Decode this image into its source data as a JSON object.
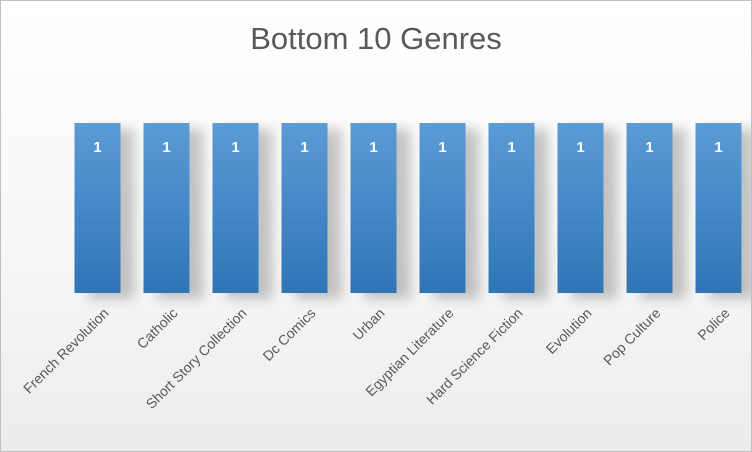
{
  "chart_data": {
    "type": "bar",
    "title": "Bottom 10 Genres",
    "categories": [
      "French Revolution",
      "Catholic",
      "Short Story Collection",
      "Dc Comics",
      "Urban",
      "Egyptian Literature",
      "Hard Science Fiction",
      "Evolution",
      "Pop Culture",
      "Police"
    ],
    "values": [
      1,
      1,
      1,
      1,
      1,
      1,
      1,
      1,
      1,
      1
    ],
    "data_labels": [
      "1",
      "1",
      "1",
      "1",
      "1",
      "1",
      "1",
      "1",
      "1",
      "1"
    ],
    "xlabel": "",
    "ylabel": "",
    "ylim": [
      0,
      1
    ],
    "grid": false,
    "legend": "none",
    "colors": {
      "bar_top": "#5b9bd5",
      "bar_bottom": "#2e75b6",
      "data_label": "#ffffff",
      "text": "#595959"
    }
  }
}
